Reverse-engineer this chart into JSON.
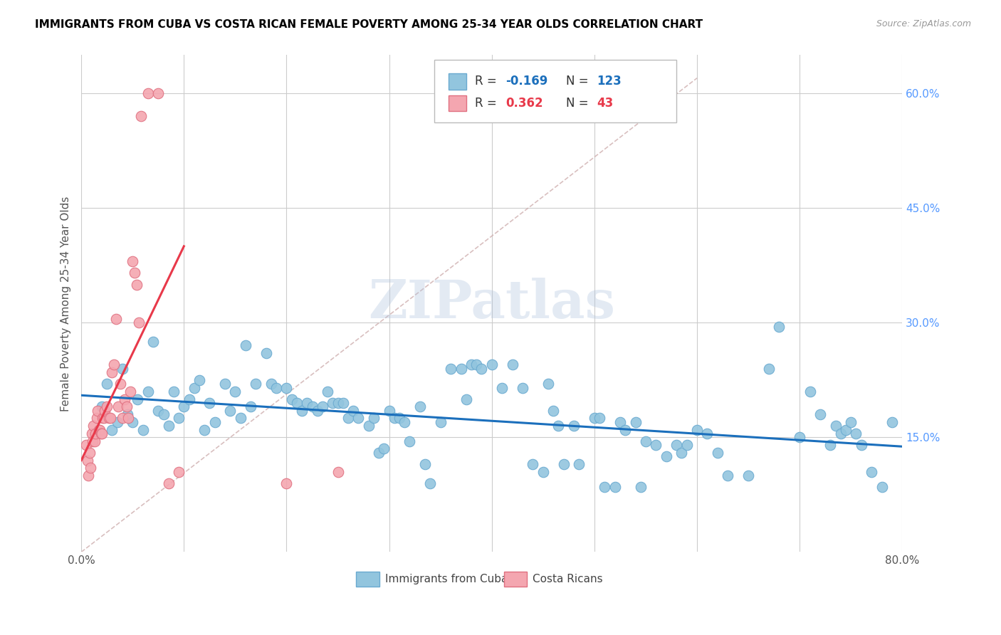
{
  "title": "IMMIGRANTS FROM CUBA VS COSTA RICAN FEMALE POVERTY AMONG 25-34 YEAR OLDS CORRELATION CHART",
  "source": "Source: ZipAtlas.com",
  "ylabel": "Female Poverty Among 25-34 Year Olds",
  "xlim": [
    0.0,
    0.8
  ],
  "ylim": [
    0.0,
    0.65
  ],
  "xticks": [
    0.0,
    0.1,
    0.2,
    0.3,
    0.4,
    0.5,
    0.6,
    0.7,
    0.8
  ],
  "xticklabels": [
    "0.0%",
    "",
    "",
    "",
    "",
    "",
    "",
    "",
    "80.0%"
  ],
  "yticks_right": [
    0.15,
    0.3,
    0.45,
    0.6
  ],
  "ytick_right_labels": [
    "15.0%",
    "30.0%",
    "45.0%",
    "60.0%"
  ],
  "color_blue": "#92C5DE",
  "color_blue_edge": "#6AAAD0",
  "color_pink": "#F4A6B0",
  "color_pink_edge": "#E07080",
  "color_blue_line": "#1B6FBC",
  "color_pink_line": "#E8394A",
  "color_dashed": "#CCAAAA",
  "watermark": "ZIPatlas",
  "blue_scatter_x": [
    0.02,
    0.025,
    0.03,
    0.035,
    0.04,
    0.045,
    0.05,
    0.055,
    0.06,
    0.065,
    0.07,
    0.075,
    0.08,
    0.085,
    0.09,
    0.095,
    0.1,
    0.105,
    0.11,
    0.115,
    0.12,
    0.125,
    0.13,
    0.14,
    0.145,
    0.15,
    0.155,
    0.16,
    0.165,
    0.17,
    0.18,
    0.185,
    0.19,
    0.2,
    0.205,
    0.21,
    0.215,
    0.22,
    0.225,
    0.23,
    0.235,
    0.24,
    0.245,
    0.25,
    0.255,
    0.26,
    0.265,
    0.27,
    0.28,
    0.285,
    0.29,
    0.295,
    0.3,
    0.305,
    0.31,
    0.315,
    0.32,
    0.33,
    0.335,
    0.34,
    0.35,
    0.36,
    0.37,
    0.375,
    0.38,
    0.385,
    0.39,
    0.4,
    0.41,
    0.42,
    0.43,
    0.44,
    0.45,
    0.455,
    0.46,
    0.465,
    0.47,
    0.48,
    0.485,
    0.5,
    0.505,
    0.51,
    0.52,
    0.525,
    0.53,
    0.54,
    0.545,
    0.55,
    0.56,
    0.57,
    0.58,
    0.585,
    0.59,
    0.6,
    0.61,
    0.62,
    0.63,
    0.65,
    0.67,
    0.68,
    0.7,
    0.71,
    0.72,
    0.73,
    0.735,
    0.74,
    0.745,
    0.75,
    0.755,
    0.76,
    0.77,
    0.78,
    0.79
  ],
  "blue_scatter_y": [
    0.19,
    0.22,
    0.16,
    0.17,
    0.24,
    0.18,
    0.17,
    0.2,
    0.16,
    0.21,
    0.275,
    0.185,
    0.18,
    0.165,
    0.21,
    0.175,
    0.19,
    0.2,
    0.215,
    0.225,
    0.16,
    0.195,
    0.17,
    0.22,
    0.185,
    0.21,
    0.175,
    0.27,
    0.19,
    0.22,
    0.26,
    0.22,
    0.215,
    0.215,
    0.2,
    0.195,
    0.185,
    0.195,
    0.19,
    0.185,
    0.19,
    0.21,
    0.195,
    0.195,
    0.195,
    0.175,
    0.185,
    0.175,
    0.165,
    0.175,
    0.13,
    0.135,
    0.185,
    0.175,
    0.175,
    0.17,
    0.145,
    0.19,
    0.115,
    0.09,
    0.17,
    0.24,
    0.24,
    0.2,
    0.245,
    0.245,
    0.24,
    0.245,
    0.215,
    0.245,
    0.215,
    0.115,
    0.105,
    0.22,
    0.185,
    0.165,
    0.115,
    0.165,
    0.115,
    0.175,
    0.175,
    0.085,
    0.085,
    0.17,
    0.16,
    0.17,
    0.085,
    0.145,
    0.14,
    0.125,
    0.14,
    0.13,
    0.14,
    0.16,
    0.155,
    0.13,
    0.1,
    0.1,
    0.24,
    0.295,
    0.15,
    0.21,
    0.18,
    0.14,
    0.165,
    0.155,
    0.16,
    0.17,
    0.155,
    0.14,
    0.105,
    0.085,
    0.17
  ],
  "pink_scatter_x": [
    0.005,
    0.006,
    0.007,
    0.008,
    0.009,
    0.01,
    0.011,
    0.012,
    0.013,
    0.014,
    0.015,
    0.016,
    0.017,
    0.018,
    0.019,
    0.02,
    0.021,
    0.022,
    0.023,
    0.025,
    0.027,
    0.028,
    0.03,
    0.032,
    0.034,
    0.036,
    0.038,
    0.04,
    0.042,
    0.044,
    0.046,
    0.048,
    0.05,
    0.052,
    0.054,
    0.056,
    0.058,
    0.065,
    0.075,
    0.085,
    0.095,
    0.2,
    0.25
  ],
  "pink_scatter_y": [
    0.14,
    0.12,
    0.1,
    0.13,
    0.11,
    0.155,
    0.145,
    0.165,
    0.145,
    0.155,
    0.175,
    0.185,
    0.16,
    0.16,
    0.155,
    0.155,
    0.175,
    0.175,
    0.185,
    0.19,
    0.175,
    0.175,
    0.235,
    0.245,
    0.305,
    0.19,
    0.22,
    0.175,
    0.2,
    0.19,
    0.175,
    0.21,
    0.38,
    0.365,
    0.35,
    0.3,
    0.57,
    0.6,
    0.6,
    0.09,
    0.105,
    0.09,
    0.105
  ],
  "blue_line_x": [
    0.0,
    0.8
  ],
  "blue_line_y": [
    0.205,
    0.138
  ],
  "pink_line_x": [
    0.0,
    0.1
  ],
  "pink_line_y": [
    0.12,
    0.4
  ],
  "dash_line_x": [
    0.0,
    0.6
  ],
  "dash_line_y": [
    0.0,
    0.62
  ]
}
